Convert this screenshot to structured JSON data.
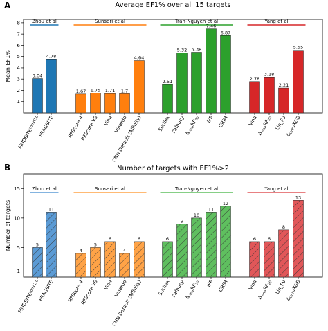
{
  "chart_data": [
    {
      "panel": "A",
      "type": "bar",
      "title": "Average EF1% over all 15 targets",
      "ylabel": "Mean EF1%",
      "ylim": [
        0,
        8.3
      ],
      "yticks": [
        1,
        2,
        3,
        4,
        5,
        6,
        7,
        8
      ],
      "hatched": false,
      "groups": [
        {
          "name": "Zhou et al",
          "color": "#1f77b4",
          "categories": [
            "FINDSITEcomb2.0",
            "FRAGSITE"
          ],
          "values": [
            3.04,
            4.78
          ]
        },
        {
          "name": "Sunseri et al",
          "color": "#ff7f0e",
          "categories": [
            "RFScore-4",
            "RFScore-VS",
            "Vina",
            "Vinardo",
            "CNN Default (Affinity)"
          ],
          "values": [
            1.67,
            1.75,
            1.71,
            1.7,
            4.64
          ]
        },
        {
          "name": "Tran-Nguyen et al",
          "color": "#2ca02c",
          "categories": [
            "Surflex",
            "Pafnucy",
            "ΔvinaRF20",
            "IFP",
            "GRIM"
          ],
          "values": [
            2.51,
            5.32,
            5.38,
            7.46,
            6.87
          ]
        },
        {
          "name": "Yang et al",
          "color": "#d62728",
          "categories": [
            "Vina",
            "ΔvinaRF20",
            "Lin_F9",
            "ΔLinF9XGB"
          ],
          "values": [
            2.78,
            3.18,
            2.21,
            5.55
          ]
        }
      ]
    },
    {
      "panel": "B",
      "type": "bar",
      "title": "Number of targets with EF1%>2",
      "ylabel": "Number of targets",
      "ylim": [
        0,
        17.5
      ],
      "yticks": [
        1,
        5,
        10,
        15
      ],
      "hatched": true,
      "groups": [
        {
          "name": "Zhou et al",
          "color": "#5b9bd5",
          "categories": [
            "FINDSITEcomb2.0",
            "FRAGSITE"
          ],
          "values": [
            5,
            11
          ]
        },
        {
          "name": "Sunseri et al",
          "color": "#ffa347",
          "categories": [
            "RFScore-4",
            "RFScore-VS",
            "Vina",
            "Vinardo",
            "CNN Default (Affinity)"
          ],
          "values": [
            4,
            5,
            6,
            4,
            6
          ]
        },
        {
          "name": "Tran-Nguyen et al",
          "color": "#5fbf5f",
          "categories": [
            "Surflex",
            "Pafnucy",
            "ΔvinaRF20",
            "IFP",
            "GRIM"
          ],
          "values": [
            6,
            9,
            10,
            11,
            12
          ]
        },
        {
          "name": "Yang et al",
          "color": "#e15759",
          "categories": [
            "Vina",
            "ΔvinaRF20",
            "Lin_F9",
            "ΔLinF9XGB"
          ],
          "values": [
            6,
            6,
            8,
            13
          ]
        }
      ]
    }
  ],
  "panel_labels": [
    "A",
    "B"
  ]
}
